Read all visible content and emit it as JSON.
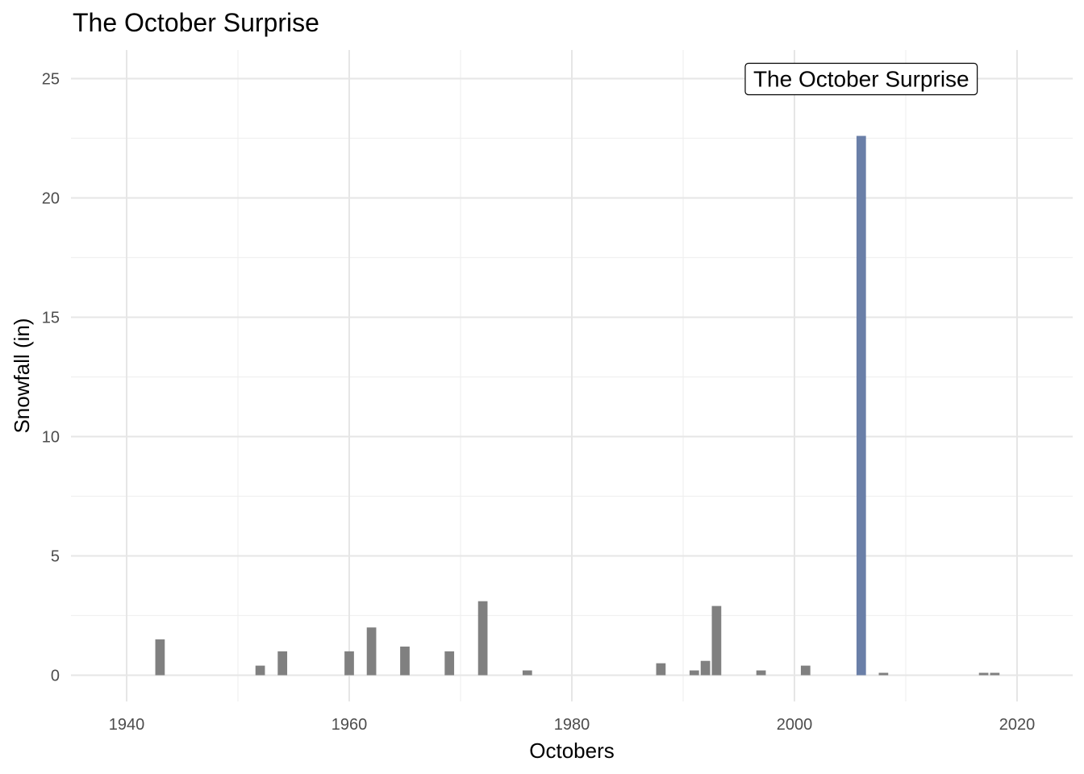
{
  "chart_data": {
    "type": "bar",
    "title": "The October Surprise",
    "xlabel": "Octobers",
    "ylabel": "Snowfall (in)",
    "xlim": [
      1935,
      2025
    ],
    "ylim": [
      -1.1,
      26.2
    ],
    "x_ticks": [
      "1940",
      "1960",
      "1980",
      "2000",
      "2020"
    ],
    "y_ticks": [
      "0",
      "5",
      "10",
      "15",
      "20",
      "25"
    ],
    "grid": true,
    "highlight_color": "#6a7fa8",
    "bar_color": "#808080",
    "annotation": {
      "text": "The October Surprise",
      "x": 2006,
      "y": 25
    },
    "bars": [
      {
        "year": 1943,
        "value": 1.5
      },
      {
        "year": 1952,
        "value": 0.4
      },
      {
        "year": 1954,
        "value": 1.0
      },
      {
        "year": 1960,
        "value": 1.0
      },
      {
        "year": 1962,
        "value": 2.0
      },
      {
        "year": 1965,
        "value": 1.2
      },
      {
        "year": 1969,
        "value": 1.0
      },
      {
        "year": 1972,
        "value": 3.1
      },
      {
        "year": 1976,
        "value": 0.2
      },
      {
        "year": 1988,
        "value": 0.5
      },
      {
        "year": 1991,
        "value": 0.2
      },
      {
        "year": 1992,
        "value": 0.6
      },
      {
        "year": 1993,
        "value": 2.9
      },
      {
        "year": 1997,
        "value": 0.2
      },
      {
        "year": 2001,
        "value": 0.4
      },
      {
        "year": 2006,
        "value": 22.6,
        "highlight": true
      },
      {
        "year": 2008,
        "value": 0.1
      },
      {
        "year": 2017,
        "value": 0.1
      },
      {
        "year": 2018,
        "value": 0.1
      }
    ]
  }
}
